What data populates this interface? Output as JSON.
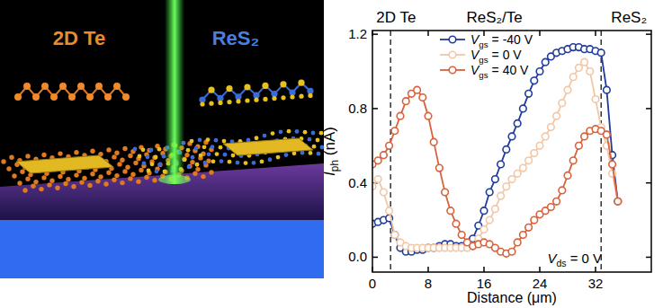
{
  "illustration": {
    "labels": [
      {
        "text": "2D Te",
        "color": "#ee8a2a"
      },
      {
        "text": "ReS₂",
        "color": "#4a7fe0"
      }
    ]
  },
  "chart_data": {
    "type": "line",
    "xlabel": "Distance (μm)",
    "ylabel": "Iph (nA)",
    "x": [
      0,
      0.8,
      1.6,
      2.4,
      3.2,
      4,
      4.8,
      5.6,
      6.4,
      7.2,
      8,
      8.8,
      9.6,
      10.4,
      11.2,
      12,
      12.8,
      13.6,
      14.4,
      15.2,
      16,
      16.8,
      17.6,
      18.4,
      19.2,
      20,
      20.8,
      21.6,
      22.4,
      23.2,
      24,
      24.8,
      25.6,
      26.4,
      27.2,
      28,
      28.8,
      29.6,
      30.4,
      31.2,
      32,
      32.8,
      33.6,
      34.4,
      35.2
    ],
    "series": [
      {
        "name": "Vgs = -40 V",
        "color": "#1f3c9c",
        "marker": "circle",
        "values": [
          0.18,
          0.19,
          0.2,
          0.21,
          0.12,
          0.05,
          0.03,
          0.03,
          0.04,
          0.04,
          0.05,
          0.05,
          0.06,
          0.07,
          0.07,
          0.06,
          0.06,
          0.07,
          0.1,
          0.17,
          0.25,
          0.35,
          0.42,
          0.5,
          0.58,
          0.65,
          0.72,
          0.8,
          0.88,
          0.95,
          1.0,
          1.05,
          1.08,
          1.1,
          1.11,
          1.12,
          1.13,
          1.13,
          1.12,
          1.12,
          1.11,
          1.1,
          0.9,
          0.55,
          0.3
        ]
      },
      {
        "name": "Vgs = 0 V",
        "color": "#f2c7a6",
        "marker": "circle",
        "values": [
          0.38,
          0.42,
          0.35,
          0.25,
          0.12,
          0.08,
          0.06,
          0.05,
          0.05,
          0.05,
          0.05,
          0.05,
          0.05,
          0.05,
          0.05,
          0.05,
          0.05,
          0.05,
          0.06,
          0.1,
          0.15,
          0.2,
          0.26,
          0.33,
          0.38,
          0.42,
          0.45,
          0.48,
          0.52,
          0.56,
          0.6,
          0.65,
          0.7,
          0.76,
          0.83,
          0.9,
          0.97,
          1.02,
          1.05,
          1.0,
          0.85,
          0.7,
          0.6,
          0.45,
          0.3
        ]
      },
      {
        "name": "Vgs = 40 V",
        "color": "#d8623c",
        "marker": "circle",
        "values": [
          0.5,
          0.52,
          0.55,
          0.6,
          0.68,
          0.76,
          0.84,
          0.88,
          0.9,
          0.86,
          0.76,
          0.62,
          0.48,
          0.35,
          0.25,
          0.18,
          0.12,
          0.08,
          0.06,
          0.07,
          0.08,
          0.07,
          0.05,
          0.03,
          0.02,
          0.03,
          0.08,
          0.12,
          0.16,
          0.2,
          0.23,
          0.25,
          0.27,
          0.3,
          0.36,
          0.44,
          0.52,
          0.6,
          0.65,
          0.68,
          0.69,
          0.68,
          0.66,
          0.5,
          0.3
        ]
      }
    ],
    "xlim": [
      0,
      40
    ],
    "xticks": [
      0,
      8,
      16,
      24,
      32
    ],
    "ylim": [
      -0.08,
      1.22
    ],
    "yticks": [
      {
        "value": 0,
        "label": "0.0"
      },
      0.4,
      0.8,
      1.2
    ],
    "grid": false,
    "legend": "upper center",
    "vlines": [
      2.6,
      32.8
    ],
    "regions": [
      {
        "label": "2D Te",
        "x": 3.4
      },
      {
        "label": "ReS₂/Te",
        "x": 17.5
      },
      {
        "label": "ReS₂",
        "x": 36.8
      }
    ],
    "annotations": [
      {
        "text": "Vds = 0 V",
        "x": 29,
        "y": -0.03
      }
    ]
  }
}
